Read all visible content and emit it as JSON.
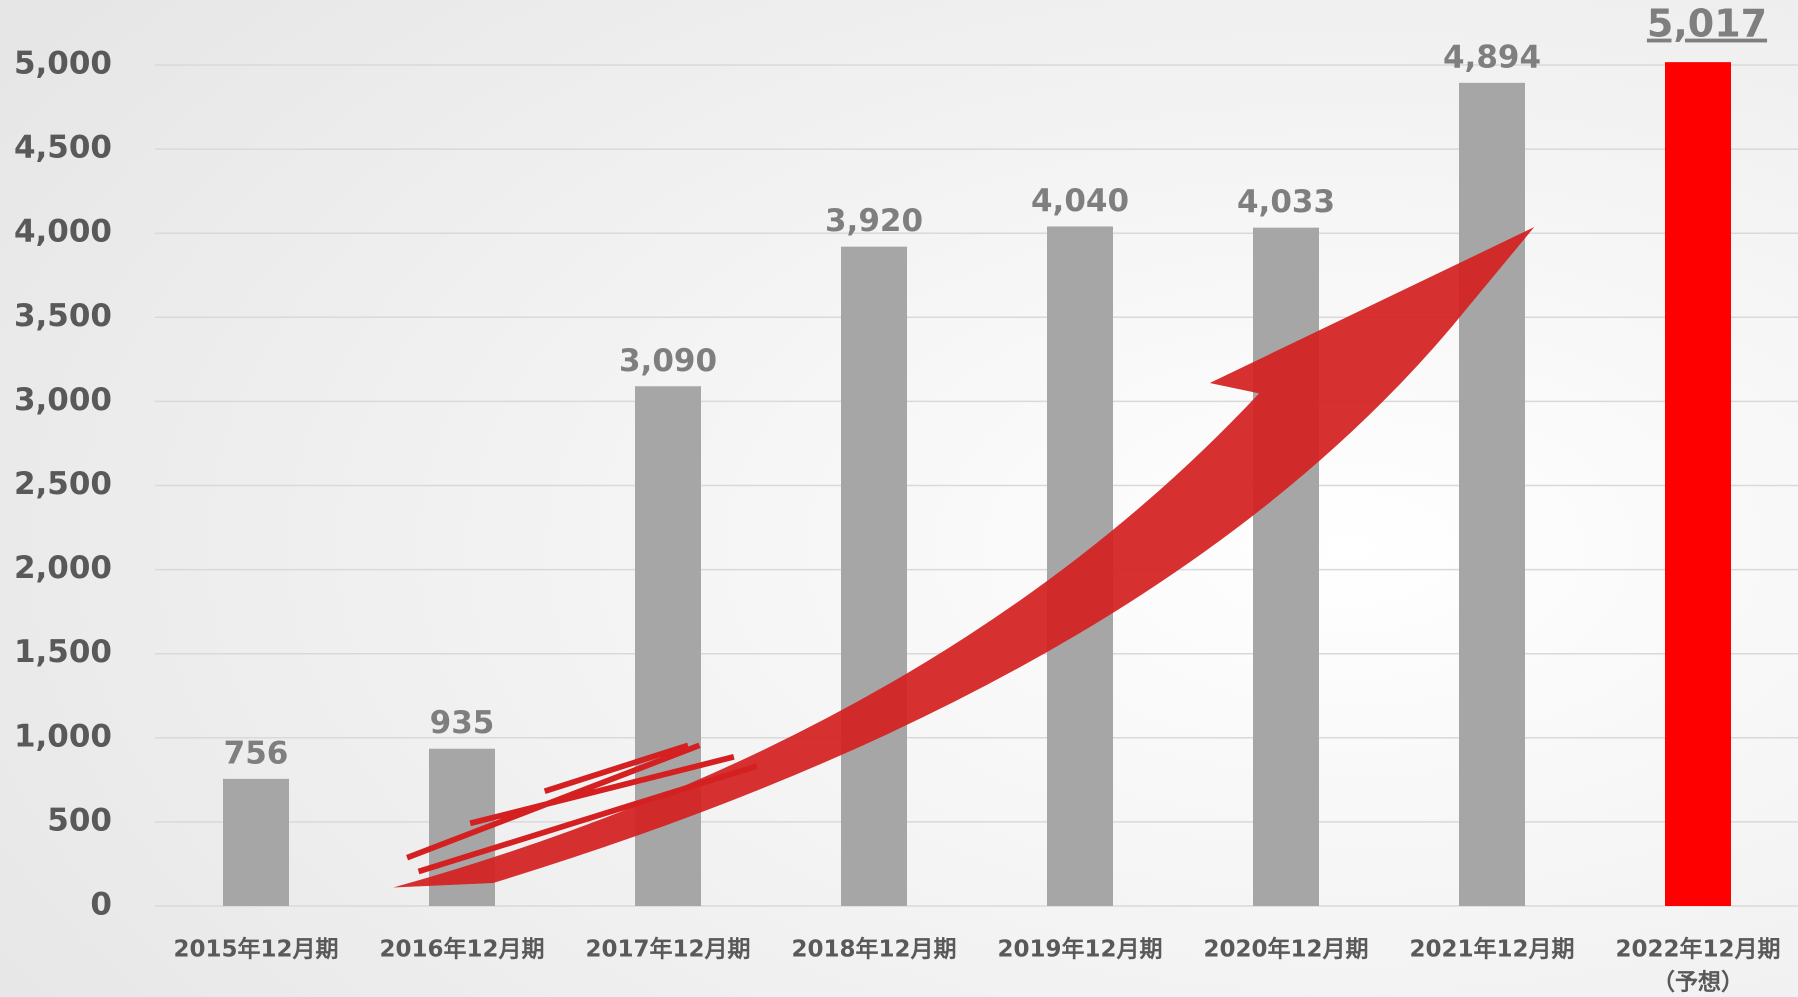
{
  "chart_data": {
    "type": "bar",
    "categories": [
      "2015年12月期",
      "2016年12月期",
      "2017年12月期",
      "2018年12月期",
      "2019年12月期",
      "2020年12月期",
      "2021年12月期",
      "2022年12月期"
    ],
    "forecast_note": "（予想）",
    "values": [
      756,
      935,
      3090,
      3920,
      4040,
      4033,
      4894,
      5017
    ],
    "value_labels": [
      "756",
      "935",
      "3,090",
      "3,920",
      "4,040",
      "4,033",
      "4,894",
      "5,017"
    ],
    "colors": [
      "#a6a6a6",
      "#a6a6a6",
      "#a6a6a6",
      "#a6a6a6",
      "#a6a6a6",
      "#a6a6a6",
      "#a6a6a6",
      "#ff0000"
    ],
    "highlight_label_color": "#c00000",
    "ylim": [
      0,
      5000
    ],
    "yticks": [
      0,
      {
        "value": 500,
        "label": "500"
      },
      {
        "value": 1000,
        "label": "1,000"
      },
      {
        "value": 1500,
        "label": "1,500"
      },
      {
        "value": 2000,
        "label": "2,000"
      },
      {
        "value": 2500,
        "label": "2,500"
      },
      {
        "value": 3000,
        "label": "3,000"
      },
      {
        "value": 3500,
        "label": "3,500"
      },
      {
        "value": 4000,
        "label": "4,000"
      },
      {
        "value": 4500,
        "label": "4,500"
      },
      {
        "value": 5000,
        "label": "5,000"
      }
    ],
    "grid": true
  }
}
